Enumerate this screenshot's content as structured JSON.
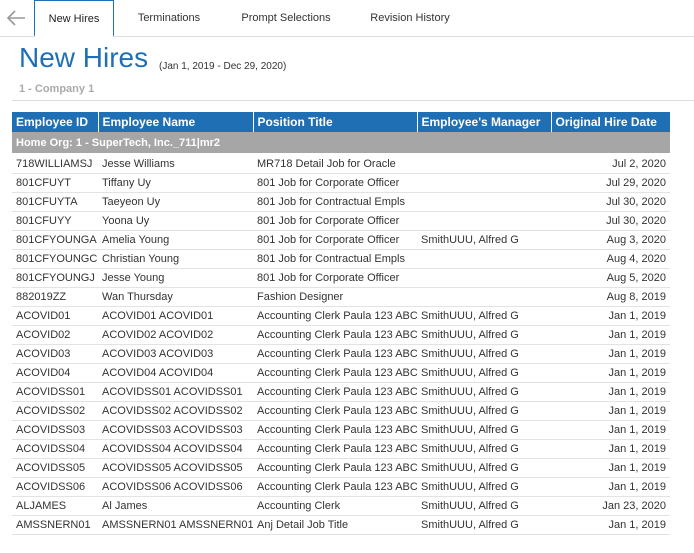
{
  "tabs": [
    "New Hires",
    "Terminations",
    "Prompt Selections",
    "Revision History"
  ],
  "header": {
    "title": "New Hires",
    "date_range": "(Jan 1, 2019 - Dec 29, 2020)",
    "company": "1 - Company 1"
  },
  "table": {
    "columns": [
      "Employee ID",
      "Employee Name",
      "Position Title",
      "Employee's Manager",
      "Original Hire Date"
    ],
    "group": "Home Org: 1 - SuperTech, Inc._711|mr2",
    "rows": [
      [
        "718WILLIAMSJ",
        "Jesse Williams",
        "MR718 Detail Job for Oracle",
        "",
        "Jul 2, 2020"
      ],
      [
        "801CFUYT",
        "Tiffany Uy",
        "801 Job for Corporate Officer",
        "",
        "Jul 29, 2020"
      ],
      [
        "801CFUYTA",
        "Taeyeon Uy",
        "801 Job for Contractual Empls",
        "",
        "Jul 30, 2020"
      ],
      [
        "801CFUYY",
        "Yoona Uy",
        "801 Job for Corporate Officer",
        "",
        "Jul 30, 2020"
      ],
      [
        "801CFYOUNGA",
        "Amelia Young",
        "801 Job for Corporate Officer",
        "SmithUUU, Alfred G",
        "Aug 3, 2020"
      ],
      [
        "801CFYOUNGC",
        "Christian Young",
        "801 Job for Contractual Empls",
        "",
        "Aug 4, 2020"
      ],
      [
        "801CFYOUNGJ",
        "Jesse Young",
        "801 Job for Corporate Officer",
        "",
        "Aug 5, 2020"
      ],
      [
        "882019ZZ",
        "Wan Thursday",
        "Fashion Designer",
        "",
        "Aug 8, 2019"
      ],
      [
        "ACOVID01",
        "ACOVID01 ACOVID01",
        "Accounting Clerk Paula 123 ABC",
        "SmithUUU, Alfred G",
        "Jan 1, 2019"
      ],
      [
        "ACOVID02",
        "ACOVID02 ACOVID02",
        "Accounting Clerk Paula 123 ABC",
        "SmithUUU, Alfred G",
        "Jan 1, 2019"
      ],
      [
        "ACOVID03",
        "ACOVID03 ACOVID03",
        "Accounting Clerk Paula 123 ABC",
        "SmithUUU, Alfred G",
        "Jan 1, 2019"
      ],
      [
        "ACOVID04",
        "ACOVID04 ACOVID04",
        "Accounting Clerk Paula 123 ABC",
        "SmithUUU, Alfred G",
        "Jan 1, 2019"
      ],
      [
        "ACOVIDSS01",
        "ACOVIDSS01 ACOVIDSS01",
        "Accounting Clerk Paula 123 ABC",
        "SmithUUU, Alfred G",
        "Jan 1, 2019"
      ],
      [
        "ACOVIDSS02",
        "ACOVIDSS02 ACOVIDSS02",
        "Accounting Clerk Paula 123 ABC",
        "SmithUUU, Alfred G",
        "Jan 1, 2019"
      ],
      [
        "ACOVIDSS03",
        "ACOVIDSS03 ACOVIDSS03",
        "Accounting Clerk Paula 123 ABC",
        "SmithUUU, Alfred G",
        "Jan 1, 2019"
      ],
      [
        "ACOVIDSS04",
        "ACOVIDSS04 ACOVIDSS04",
        "Accounting Clerk Paula 123 ABC",
        "SmithUUU, Alfred G",
        "Jan 1, 2019"
      ],
      [
        "ACOVIDSS05",
        "ACOVIDSS05 ACOVIDSS05",
        "Accounting Clerk Paula 123 ABC",
        "SmithUUU, Alfred G",
        "Jan 1, 2019"
      ],
      [
        "ACOVIDSS06",
        "ACOVIDSS06 ACOVIDSS06",
        "Accounting Clerk Paula 123 ABC",
        "SmithUUU, Alfred G",
        "Jan 1, 2019"
      ],
      [
        "ALJAMES",
        "Al James",
        "Accounting Clerk",
        "SmithUUU, Alfred G",
        "Jan 23, 2020"
      ],
      [
        "AMSSNERN01",
        "AMSSNERN01 AMSSNERN01",
        "Anj Detail Job Title",
        "SmithUUU, Alfred G",
        "Jan 1, 2019"
      ]
    ]
  }
}
